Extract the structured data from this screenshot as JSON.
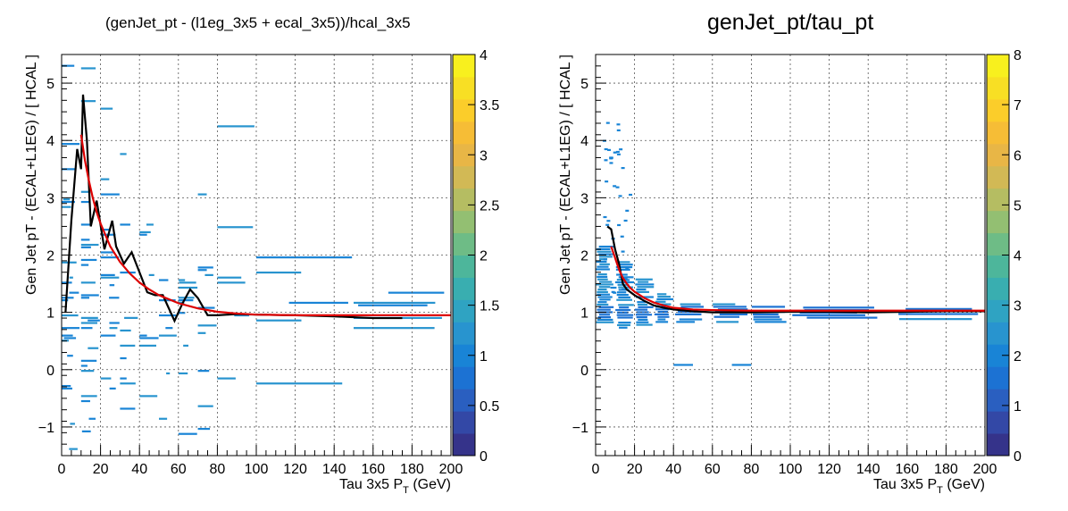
{
  "chart_data": [
    {
      "type": "heatmap",
      "title": "(genJet_pt - (l1eg_3x5 + ecal_3x5))/hcal_3x5",
      "xlabel": "Tau 3x5 P",
      "xlabel_sub": "T",
      "xlabel_unit": " (GeV)",
      "ylabel": "Gen Jet pT - (ECAL+L1EG) / [ HCAL ]",
      "xlim": [
        0,
        200
      ],
      "ylim": [
        -1.5,
        5.5
      ],
      "x_ticks": [
        "0",
        "20",
        "40",
        "60",
        "80",
        "100",
        "120",
        "140",
        "160",
        "180",
        "200"
      ],
      "y_ticks": [
        "−1",
        "0",
        "1",
        "2",
        "3",
        "4",
        "5"
      ],
      "colorbar": {
        "range": [
          0,
          4
        ],
        "ticks": [
          "0",
          "0.5",
          "1",
          "1.5",
          "2",
          "2.5",
          "3",
          "3.5",
          "4"
        ]
      },
      "grid": true,
      "series": [
        {
          "kind": "profile",
          "color": "#000000",
          "x": [
            2,
            5,
            8,
            10,
            11,
            13,
            15,
            18,
            22,
            26,
            28,
            32,
            36,
            40,
            44,
            48,
            52,
            58,
            62,
            66,
            70,
            75,
            80,
            90,
            100,
            120,
            140,
            160,
            175
          ],
          "y": [
            1.0,
            2.6,
            3.85,
            3.5,
            4.8,
            4.0,
            2.5,
            2.95,
            2.1,
            2.6,
            2.15,
            1.85,
            2.05,
            1.7,
            1.35,
            1.3,
            1.3,
            0.85,
            1.15,
            1.4,
            1.25,
            0.95,
            0.95,
            0.97,
            0.96,
            0.95,
            0.93,
            0.9,
            0.9
          ]
        },
        {
          "kind": "fit",
          "color": "#dd0000",
          "x": [
            10,
            12,
            14,
            16,
            18,
            20,
            25,
            30,
            35,
            40,
            45,
            50,
            60,
            70,
            80,
            90,
            100,
            120,
            140,
            160,
            180,
            200
          ],
          "y": [
            4.1,
            3.65,
            3.3,
            3.0,
            2.75,
            2.55,
            2.15,
            1.88,
            1.68,
            1.52,
            1.4,
            1.3,
            1.16,
            1.07,
            1.01,
            0.98,
            0.96,
            0.95,
            0.95,
            0.95,
            0.95,
            0.95
          ]
        }
      ]
    },
    {
      "type": "heatmap",
      "title": "genJet_pt/tau_pt",
      "xlabel": "Tau 3x5 P",
      "xlabel_sub": "T",
      "xlabel_unit": " (GeV)",
      "ylabel": "Gen Jet pT - (ECAL+L1EG) / [ HCAL ]",
      "xlim": [
        0,
        200
      ],
      "ylim": [
        -1.5,
        5.5
      ],
      "x_ticks": [
        "0",
        "20",
        "40",
        "60",
        "80",
        "100",
        "120",
        "140",
        "160",
        "180",
        "200"
      ],
      "y_ticks": [
        "−1",
        "0",
        "1",
        "2",
        "3",
        "4",
        "5"
      ],
      "colorbar": {
        "range": [
          0,
          8
        ],
        "ticks": [
          "0",
          "1",
          "2",
          "3",
          "4",
          "5",
          "6",
          "7",
          "8"
        ]
      },
      "grid": true,
      "series": [
        {
          "kind": "profile",
          "color": "#000000",
          "x": [
            6,
            8,
            10,
            12,
            14,
            16,
            18,
            20,
            25,
            30,
            35,
            40,
            50,
            60,
            70,
            80,
            100,
            120,
            140,
            160,
            180,
            200
          ],
          "y": [
            2.5,
            2.45,
            2.1,
            1.85,
            1.5,
            1.4,
            1.35,
            1.3,
            1.2,
            1.12,
            1.08,
            1.05,
            1.02,
            1.0,
            1.0,
            1.0,
            1.01,
            1.01,
            1.0,
            1.01,
            1.02,
            1.02
          ]
        },
        {
          "kind": "fit",
          "color": "#dd0000",
          "x": [
            8,
            10,
            12,
            14,
            16,
            18,
            20,
            25,
            30,
            35,
            40,
            50,
            60,
            80,
            100,
            120,
            140,
            160,
            180,
            200
          ],
          "y": [
            2.15,
            1.95,
            1.75,
            1.6,
            1.5,
            1.42,
            1.36,
            1.25,
            1.17,
            1.12,
            1.08,
            1.05,
            1.04,
            1.03,
            1.03,
            1.03,
            1.03,
            1.03,
            1.03,
            1.03
          ]
        }
      ]
    }
  ]
}
